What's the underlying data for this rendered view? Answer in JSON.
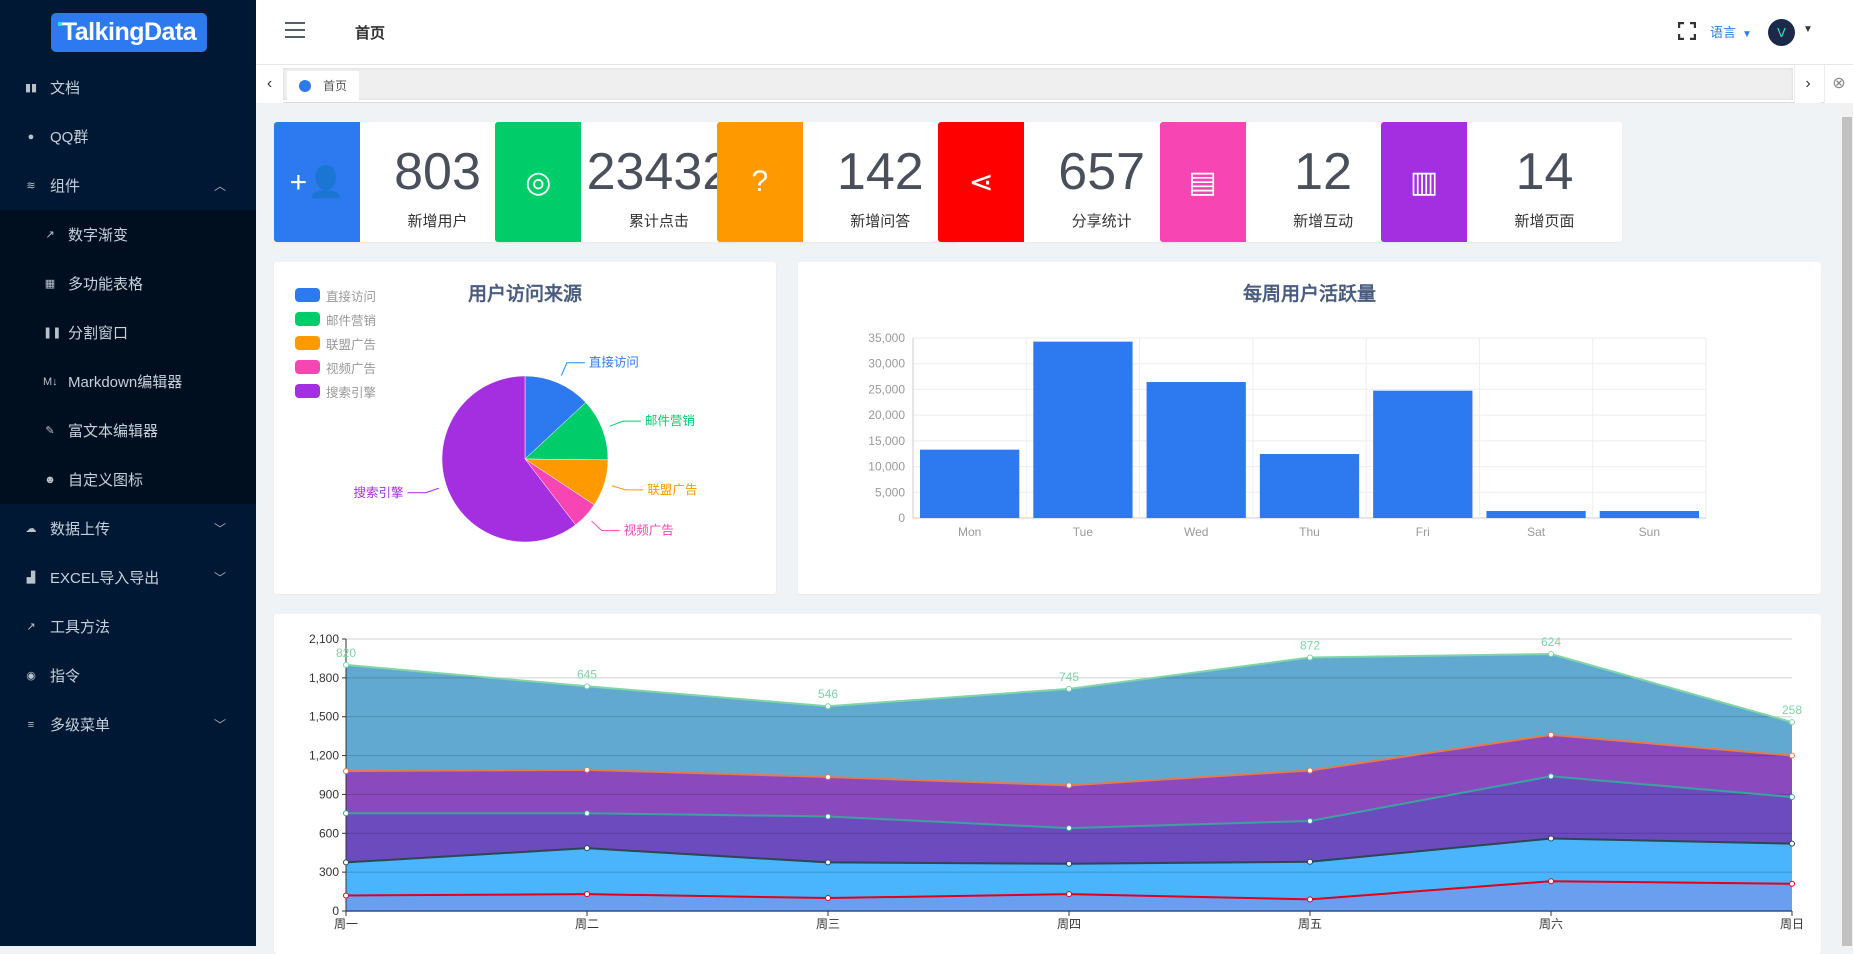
{
  "sidebar": {
    "logo": "TalkingData",
    "items": [
      {
        "label": "文档",
        "icon": "book-icon",
        "glyph": "▮▮"
      },
      {
        "label": "QQ群",
        "icon": "qq-icon",
        "glyph": "●"
      },
      {
        "label": "组件",
        "icon": "layers-icon",
        "glyph": "≋",
        "chev": "︿"
      },
      {
        "label": "数字渐变",
        "icon": "trend-icon",
        "glyph": "↗",
        "sub": true
      },
      {
        "label": "多功能表格",
        "icon": "table-icon",
        "glyph": "▦",
        "sub": true
      },
      {
        "label": "分割窗口",
        "icon": "split-icon",
        "glyph": "❚❚",
        "sub": true
      },
      {
        "label": "Markdown编辑器",
        "icon": "markdown-icon",
        "glyph": "M↓",
        "sub": true
      },
      {
        "label": "富文本编辑器",
        "icon": "edit-icon",
        "glyph": "✎",
        "sub": true
      },
      {
        "label": "自定义图标",
        "icon": "custom-icon",
        "glyph": "☻",
        "sub": true
      },
      {
        "label": "数据上传",
        "icon": "cloud-upload-icon",
        "glyph": "☁",
        "chev": "﹀"
      },
      {
        "label": "EXCEL导入导出",
        "icon": "bar-chart-icon",
        "glyph": "▟",
        "chev": "﹀"
      },
      {
        "label": "工具方法",
        "icon": "hammer-icon",
        "glyph": "↗"
      },
      {
        "label": "指令",
        "icon": "compass-icon",
        "glyph": "◉"
      },
      {
        "label": "多级菜单",
        "icon": "menu-icon",
        "glyph": "≡",
        "chev": "﹀"
      }
    ]
  },
  "header": {
    "breadcrumb": "首页",
    "language": "语言",
    "avatar": "V"
  },
  "tabs": {
    "items": [
      "首页"
    ]
  },
  "stats": [
    {
      "value": "803",
      "label": "新增用户",
      "color": "#2d7af0",
      "icon": "add-user-icon",
      "glyph": "+👤"
    },
    {
      "value": "23432",
      "label": "累计点击",
      "color": "#00cc6a",
      "icon": "locate-icon",
      "glyph": "◎"
    },
    {
      "value": "142",
      "label": "新增问答",
      "color": "#ff9900",
      "icon": "help-icon",
      "glyph": "?"
    },
    {
      "value": "657",
      "label": "分享统计",
      "color": "#ff0000",
      "icon": "share-icon",
      "glyph": "⋖"
    },
    {
      "value": "12",
      "label": "新增互动",
      "color": "#f845b4",
      "icon": "chat-icon",
      "glyph": "▤"
    },
    {
      "value": "14",
      "label": "新增页面",
      "color": "#a42fe0",
      "icon": "map-icon",
      "glyph": "▥"
    }
  ],
  "chart_data": [
    {
      "type": "pie",
      "title": "用户访问来源",
      "legend_position": "top-left",
      "categories": [
        "直接访问",
        "邮件营销",
        "联盟广告",
        "视频广告",
        "搜索引擎"
      ],
      "values": [
        335,
        310,
        234,
        135,
        1548
      ],
      "colors": [
        "#2d7af0",
        "#00cc6a",
        "#ff9900",
        "#f845b4",
        "#a42fe0"
      ]
    },
    {
      "type": "bar",
      "title": "每周用户活跃量",
      "categories": [
        "Mon",
        "Tue",
        "Wed",
        "Thu",
        "Fri",
        "Sat",
        "Sun"
      ],
      "values": [
        13290,
        34290,
        26440,
        12440,
        24760,
        1360,
        1360
      ],
      "ylim": [
        0,
        35000
      ],
      "yticks": [
        "0",
        "5,000",
        "10,000",
        "15,000",
        "20,000",
        "25,000",
        "30,000",
        "35,000"
      ],
      "color": "#2d7af0",
      "grid": true
    },
    {
      "type": "area",
      "stacked": true,
      "categories": [
        "周一",
        "周二",
        "周三",
        "周四",
        "周五",
        "周六",
        "周日"
      ],
      "ylim": [
        0,
        2100
      ],
      "yticks": [
        "0",
        "300",
        "600",
        "900",
        "1,200",
        "1,500",
        "1,800",
        "2,100"
      ],
      "series": [
        {
          "values": [
            120,
            130,
            100,
            130,
            90,
            230,
            210
          ],
          "fill": "#6a9ff0",
          "line": "#e0001a"
        },
        {
          "values": [
            255,
            355,
            275,
            235,
            290,
            330,
            310
          ],
          "fill": "#4ab5fc",
          "line": "#2f4554"
        },
        {
          "values": [
            380,
            270,
            355,
            275,
            315,
            480,
            360
          ],
          "fill": "#6c4bbf",
          "line": "#3aa3a0"
        },
        {
          "values": [
            325,
            335,
            305,
            330,
            390,
            320,
            320
          ],
          "fill": "#8a4abd",
          "line": "#e57a4f"
        },
        {
          "values": [
            820,
            645,
            546,
            745,
            872,
            624,
            258
          ],
          "fill": "#62a9d2",
          "line": "#7fd4a8",
          "labels": [
            "820",
            "645",
            "546",
            "745",
            "872",
            "624",
            "258"
          ]
        }
      ]
    }
  ]
}
